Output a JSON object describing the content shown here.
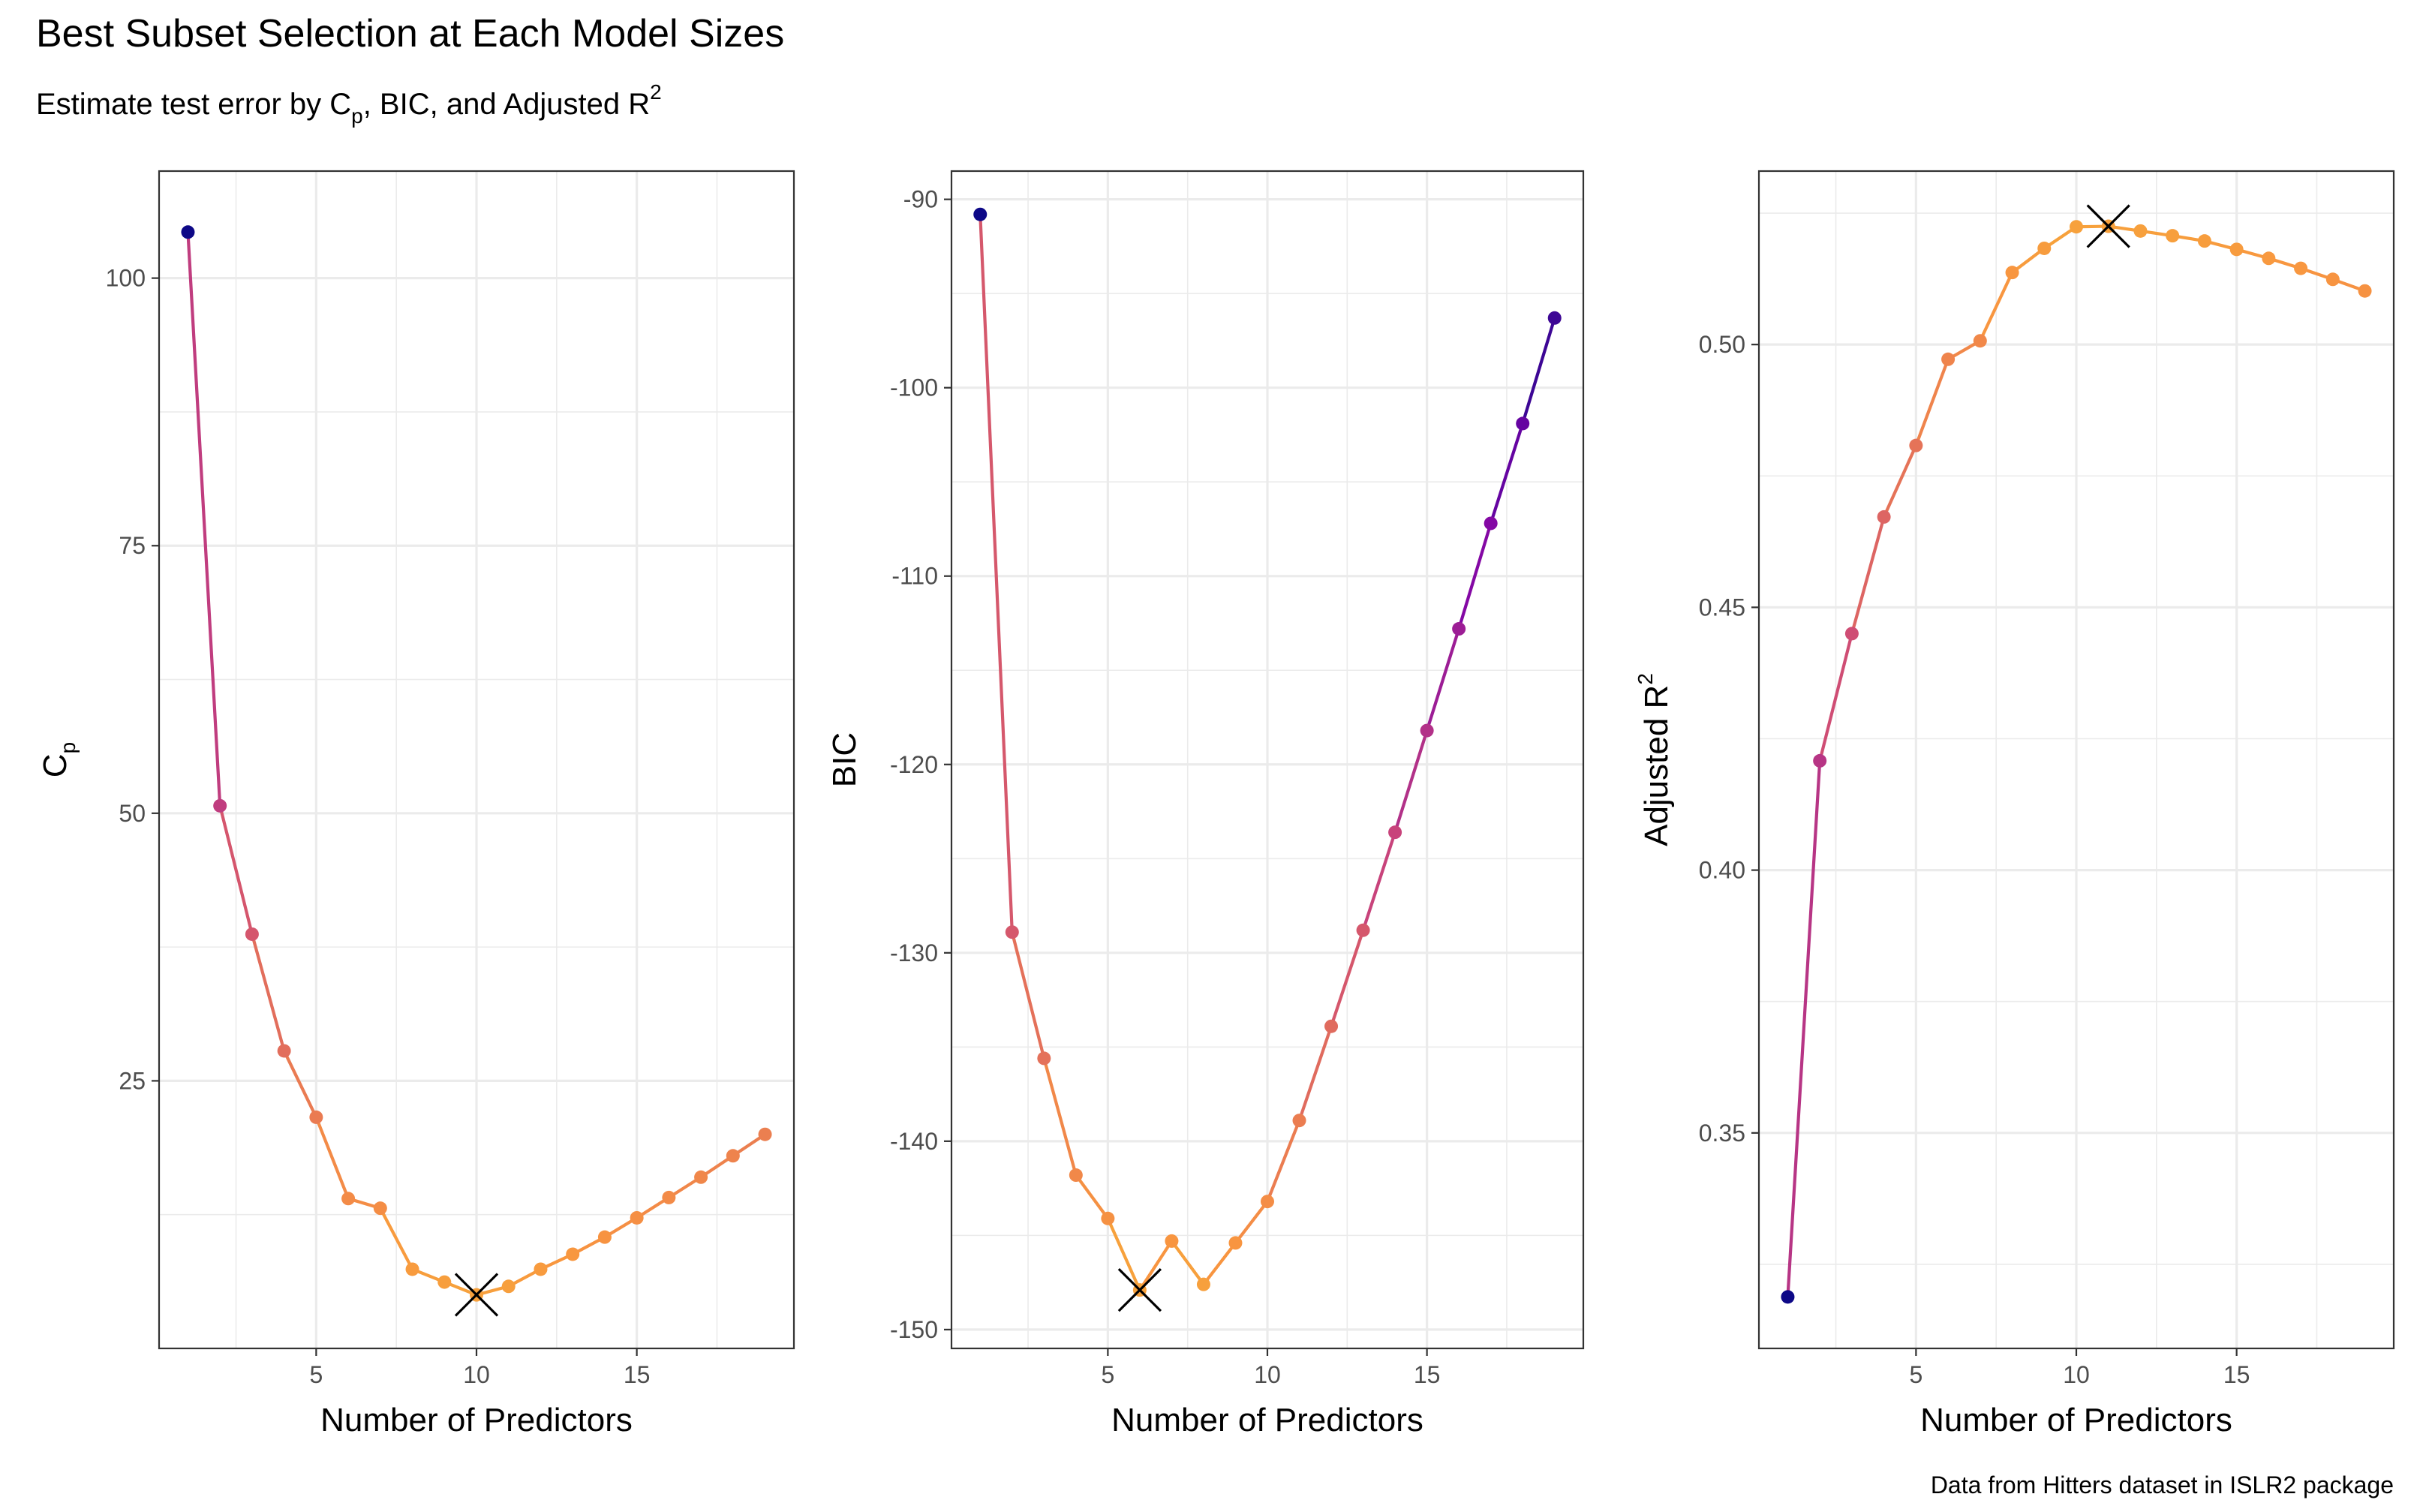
{
  "title": "Best Subset Selection at Each Model Sizes",
  "subtitle": {
    "prefix": "Estimate test error by C",
    "sub": "p",
    "middle": ", BIC, and Adjusted R",
    "sup": "2"
  },
  "caption": "Data from Hitters dataset in ISLR2 package",
  "color_scale": {
    "name": "plasma",
    "low": "#0d0887",
    "mid1": "#7e03a8",
    "mid2": "#cc4778",
    "mid3": "#f89540",
    "high": "#f0f921"
  },
  "chart_data": [
    {
      "type": "line",
      "id": "cp",
      "ylabel": {
        "main": "C",
        "sub": "p"
      },
      "xlabel": "Number of Predictors",
      "xlim": [
        0.1,
        19.9
      ],
      "ylim": [
        0,
        110
      ],
      "xticks": [
        5,
        10,
        15
      ],
      "yticks": [
        25,
        50,
        75,
        100
      ],
      "grid": true,
      "best_marker": {
        "x": 10,
        "y": 5.01,
        "symbol": "X"
      },
      "x": [
        1,
        2,
        3,
        4,
        5,
        6,
        7,
        8,
        9,
        10,
        11,
        12,
        13,
        14,
        15,
        16,
        17,
        18,
        19
      ],
      "y": [
        104.3,
        50.7,
        38.7,
        27.8,
        21.6,
        14.0,
        13.1,
        7.4,
        6.2,
        5.0,
        5.8,
        7.4,
        8.8,
        10.4,
        12.2,
        14.1,
        16.0,
        18.0,
        20.0
      ]
    },
    {
      "type": "line",
      "id": "bic",
      "ylabel": {
        "main": "BIC"
      },
      "xlabel": "Number of Predictors",
      "xlim": [
        0.1,
        19.9
      ],
      "ylim": [
        -151,
        -88.5
      ],
      "xticks": [
        5,
        10,
        15
      ],
      "yticks": [
        -150,
        -140,
        -130,
        -120,
        -110,
        -100,
        -90
      ],
      "grid": true,
      "best_marker": {
        "x": 6,
        "y": -147.9,
        "symbol": "X"
      },
      "x": [
        1,
        2,
        3,
        4,
        5,
        6,
        7,
        8,
        9,
        10,
        11,
        12,
        13,
        14,
        15,
        16,
        17,
        18,
        19
      ],
      "y": [
        -90.8,
        -128.9,
        -135.6,
        -141.8,
        -144.1,
        -147.9,
        -145.3,
        -147.6,
        -145.4,
        -143.2,
        -138.9,
        -133.9,
        -128.8,
        -123.6,
        -118.2,
        -112.8,
        -107.2,
        -101.9,
        -96.3
      ]
    },
    {
      "type": "line",
      "id": "adjr2",
      "ylabel": {
        "main": "Adjusted R",
        "sup": "2"
      },
      "xlabel": "Number of Predictors",
      "xlim": [
        0.1,
        19.9
      ],
      "ylim": [
        0.309,
        0.533
      ],
      "xticks": [
        5,
        10,
        15
      ],
      "yticks": [
        0.35,
        0.4,
        0.45,
        0.5
      ],
      "ytick_labels": [
        "0.35",
        "0.40",
        "0.45",
        "0.50"
      ],
      "grid": true,
      "best_marker": {
        "x": 11,
        "y": 0.5225,
        "symbol": "X"
      },
      "x": [
        1,
        2,
        3,
        4,
        5,
        6,
        7,
        8,
        9,
        10,
        11,
        12,
        13,
        14,
        15,
        16,
        17,
        18,
        19
      ],
      "y": [
        0.3188,
        0.4208,
        0.445,
        0.4672,
        0.4808,
        0.4972,
        0.5007,
        0.5137,
        0.5183,
        0.5224,
        0.5225,
        0.5216,
        0.5207,
        0.5197,
        0.5181,
        0.5164,
        0.5145,
        0.5124,
        0.5102
      ]
    }
  ]
}
